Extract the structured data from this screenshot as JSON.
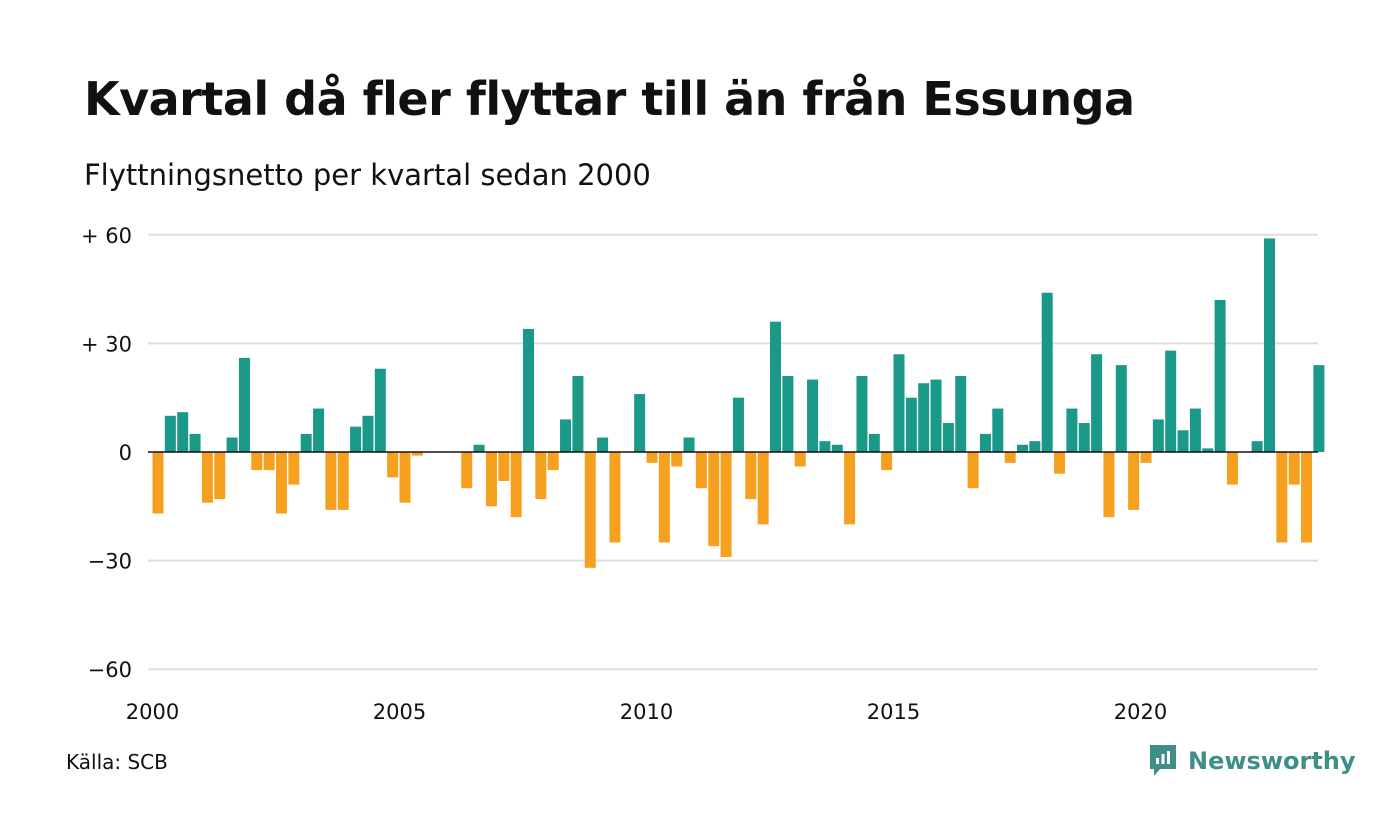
{
  "title": "Kvartal då fler flyttar till än från Essunga",
  "subtitle": "Flyttningsnetto per kvartal sedan 2000",
  "source": "Källa: SCB",
  "brand": {
    "name": "Newsworthy",
    "icon": "newsworthy-chart-icon"
  },
  "colors": {
    "positive": "#1a9988",
    "negative": "#f5a01f",
    "grid": "#dddddd",
    "axis": "#111111",
    "brand": "#3f8f88"
  },
  "chart_data": {
    "type": "bar",
    "title": "Kvartal då fler flyttar till än från Essunga",
    "subtitle": "Flyttningsnetto per kvartal sedan 2000",
    "xlabel": "",
    "ylabel": "",
    "ylim": [
      -60,
      60
    ],
    "yticks": [
      {
        "value": 60,
        "label": "+ 60"
      },
      {
        "value": 30,
        "label": "+ 30"
      },
      {
        "value": 0,
        "label": "0"
      },
      {
        "value": -30,
        "label": "−30"
      },
      {
        "value": -60,
        "label": "−60"
      }
    ],
    "xticks": [
      "2000",
      "2005",
      "2010",
      "2015",
      "2020"
    ],
    "grid": true,
    "legend": "none",
    "categories": [
      "2000 K1",
      "2000 K2",
      "2000 K3",
      "2000 K4",
      "2001 K1",
      "2001 K2",
      "2001 K3",
      "2001 K4",
      "2002 K1",
      "2002 K2",
      "2002 K3",
      "2002 K4",
      "2003 K1",
      "2003 K2",
      "2003 K3",
      "2003 K4",
      "2004 K1",
      "2004 K2",
      "2004 K3",
      "2004 K4",
      "2005 K1",
      "2005 K2",
      "2005 K3",
      "2005 K4",
      "2006 K1",
      "2006 K2",
      "2006 K3",
      "2006 K4",
      "2007 K1",
      "2007 K2",
      "2007 K3",
      "2007 K4",
      "2008 K1",
      "2008 K2",
      "2008 K3",
      "2008 K4",
      "2009 K1",
      "2009 K2",
      "2009 K3",
      "2009 K4",
      "2010 K1",
      "2010 K2",
      "2010 K3",
      "2010 K4",
      "2011 K1",
      "2011 K2",
      "2011 K3",
      "2011 K4",
      "2012 K1",
      "2012 K2",
      "2012 K3",
      "2012 K4",
      "2013 K1",
      "2013 K2",
      "2013 K3",
      "2013 K4",
      "2014 K1",
      "2014 K2",
      "2014 K3",
      "2014 K4",
      "2015 K1",
      "2015 K2",
      "2015 K3",
      "2015 K4",
      "2016 K1",
      "2016 K2",
      "2016 K3",
      "2016 K4",
      "2017 K1",
      "2017 K2",
      "2017 K3",
      "2017 K4",
      "2018 K1",
      "2018 K2",
      "2018 K3",
      "2018 K4",
      "2019 K1",
      "2019 K2",
      "2019 K3",
      "2019 K4",
      "2020 K1",
      "2020 K2",
      "2020 K3",
      "2020 K4",
      "2021 K1",
      "2021 K2",
      "2021 K3",
      "2021 K4",
      "2022 K1",
      "2022 K2",
      "2022 K3",
      "2022 K4",
      "2023 K1",
      "2023 K2",
      "2023 K3",
      "2023 K4"
    ],
    "values": [
      -17,
      10,
      11,
      5,
      -14,
      -13,
      4,
      26,
      -5,
      -5,
      -17,
      -9,
      5,
      12,
      -16,
      -16,
      7,
      10,
      23,
      -7,
      -14,
      -1,
      0,
      0,
      0,
      -10,
      2,
      -15,
      -8,
      -18,
      34,
      -13,
      -5,
      9,
      21,
      -32,
      4,
      -25,
      0,
      16,
      -3,
      -25,
      -4,
      4,
      -10,
      -26,
      -29,
      15,
      -13,
      -20,
      36,
      21,
      -4,
      20,
      3,
      2,
      -20,
      21,
      5,
      -5,
      27,
      15,
      19,
      20,
      8,
      21,
      -10,
      5,
      12,
      -3,
      2,
      3,
      44,
      -6,
      12,
      8,
      27,
      -18,
      24,
      -16,
      -3,
      9,
      28,
      6,
      12,
      1,
      42,
      -9,
      0,
      3,
      59,
      -25,
      -9,
      -25,
      24,
      0
    ]
  }
}
